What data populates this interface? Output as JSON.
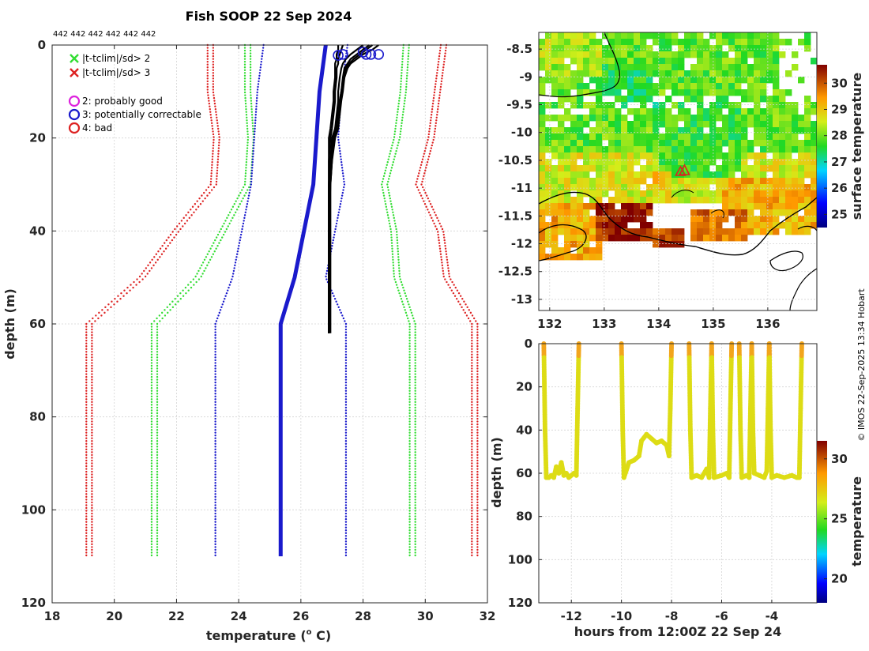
{
  "chart_data": [
    {
      "id": "profile",
      "type": "line",
      "title": "Fish SOOP 22 Sep 2024",
      "top_annotation": "442 442 442 442 442 442",
      "xlabel": "temperature (",
      "xlabel_sup": "o",
      "xlabel_tail": " C)",
      "ylabel": "depth (m)",
      "xlim": [
        18,
        32
      ],
      "ylim": [
        0,
        120
      ],
      "xticks": [
        18,
        20,
        22,
        24,
        26,
        28,
        30,
        32
      ],
      "yticks": [
        0,
        20,
        40,
        60,
        80,
        100,
        120
      ],
      "legend": [
        {
          "symbol": "x",
          "color": "#33dd33",
          "label": "|t-tclim|/sd> 2"
        },
        {
          "symbol": "x",
          "color": "#dd2222",
          "label": "|t-tclim|/sd> 3"
        },
        {
          "symbol": "o",
          "color": "#dd22dd",
          "label": "2: probably good"
        },
        {
          "symbol": "o",
          "color": "#1a1acc",
          "label": "3: potentially correctable"
        },
        {
          "symbol": "o",
          "color": "#dd2222",
          "label": "4: bad"
        }
      ],
      "depth_levels": [
        0,
        10,
        20,
        30,
        40,
        50,
        60,
        110
      ],
      "climatology": {
        "mean": [
          26.8,
          26.6,
          26.5,
          26.4,
          26.1,
          25.8,
          25.35,
          25.35
        ],
        "minus_2sd": [
          24.2,
          24.2,
          24.3,
          24.2,
          23.4,
          22.6,
          21.2,
          21.2
        ],
        "plus_2sd": [
          29.3,
          29.2,
          29.0,
          28.6,
          28.9,
          29.0,
          29.5,
          29.5
        ],
        "minus_3sd": [
          23.0,
          23.0,
          23.2,
          23.1,
          21.9,
          20.8,
          19.1,
          19.1
        ],
        "plus_3sd": [
          30.5,
          30.3,
          30.1,
          29.7,
          30.4,
          30.6,
          31.5,
          31.5
        ],
        "colors": {
          "mean": "#1a1acc",
          "sd2": "#33dd33",
          "sd3": "#dd2222",
          "bounds": "#1a1acc"
        }
      },
      "profiles_depth": [
        0,
        1,
        2,
        3,
        4,
        5,
        7,
        10,
        12,
        15,
        18,
        20,
        25,
        30,
        40,
        50,
        60,
        62
      ],
      "profiles": [
        [
          27.35,
          27.3,
          27.25,
          27.2,
          27.2,
          27.15,
          27.15,
          27.1,
          27.1,
          27.05,
          27.0,
          26.95,
          26.9,
          26.9,
          26.9,
          26.9,
          26.9,
          26.9
        ],
        [
          28.0,
          27.8,
          27.6,
          27.45,
          27.35,
          27.3,
          27.25,
          27.2,
          27.2,
          27.15,
          27.1,
          27.0,
          26.95,
          26.9,
          26.9,
          26.9,
          26.9,
          26.9
        ],
        [
          28.5,
          28.3,
          28.0,
          27.8,
          27.6,
          27.5,
          27.4,
          27.3,
          27.25,
          27.2,
          27.1,
          27.05,
          26.95,
          26.9,
          26.9,
          26.9,
          26.9,
          26.9
        ],
        [
          28.2,
          28.0,
          27.8,
          27.6,
          27.5,
          27.4,
          27.35,
          27.3,
          27.25,
          27.2,
          27.15,
          27.05,
          27.0,
          26.95,
          26.95,
          26.95,
          26.95,
          26.95
        ],
        [
          27.2,
          27.2,
          27.15,
          27.15,
          27.1,
          27.1,
          27.1,
          27.05,
          27.05,
          27.0,
          26.95,
          26.9,
          26.9,
          26.9,
          26.9,
          26.9,
          26.9,
          26.9
        ],
        [
          28.3,
          28.1,
          27.9,
          27.7,
          27.55,
          27.45,
          27.4,
          27.35,
          27.3,
          27.25,
          27.2,
          27.1,
          27.0,
          26.95,
          26.9,
          26.9,
          26.9,
          26.9
        ]
      ],
      "flag_markers": [
        {
          "temperature": 27.35,
          "depth": 1,
          "color": "#1a1acc"
        },
        {
          "temperature": 28.0,
          "depth": 0.5,
          "color": "#1a1acc"
        },
        {
          "temperature": 28.1,
          "depth": 1,
          "color": "#1a1acc"
        },
        {
          "temperature": 28.5,
          "depth": 1,
          "color": "#1a1acc"
        },
        {
          "temperature": 28.25,
          "depth": 1,
          "color": "#1a1acc"
        },
        {
          "temperature": 27.2,
          "depth": 1.2,
          "color": "#1a1acc"
        }
      ]
    },
    {
      "id": "sst-map",
      "type": "heatmap",
      "colorbar_label": "surface temperature",
      "clim": [
        24.5,
        30.7
      ],
      "colorbar_ticks": [
        25,
        26,
        27,
        28,
        29,
        30
      ],
      "xlim": [
        131.8,
        136.9
      ],
      "ylim": [
        -13.2,
        -8.2
      ],
      "xticks": [
        132,
        133,
        134,
        135,
        136
      ],
      "yticks": [
        -8.5,
        -9,
        -9.5,
        -10,
        -10.5,
        -11,
        -11.5,
        -12,
        -12.5,
        -13
      ],
      "vessel_marker": {
        "lon": 134.4,
        "lat": -10.7,
        "color": "#dd2222"
      },
      "regions": [
        {
          "lon": [
            131.8,
            136.9
          ],
          "lat": [
            -10.8,
            -8.2
          ],
          "temperature": 27.9
        },
        {
          "lon": [
            131.8,
            136.9
          ],
          "lat": [
            -11.3,
            -10.4
          ],
          "temperature": 28.6
        },
        {
          "lon": [
            134.0,
            135.5
          ],
          "lat": [
            -10.8,
            -9.4
          ],
          "temperature": 27.7
        },
        {
          "lon": [
            133.0,
            134.0
          ],
          "lat": [
            -9.6,
            -8.8
          ],
          "temperature": 27.5
        },
        {
          "lon": [
            131.8,
            133.0
          ],
          "lat": [
            -9.0,
            -8.2
          ],
          "temperature": 28.3
        },
        {
          "lon": [
            135.2,
            136.9
          ],
          "lat": [
            -11.8,
            -10.8
          ],
          "temperature": 29.2
        },
        {
          "lon": [
            131.8,
            133.0
          ],
          "lat": [
            -12.3,
            -11.3
          ],
          "temperature": 29.3
        },
        {
          "lon": [
            132.9,
            133.9
          ],
          "lat": [
            -11.9,
            -11.3
          ],
          "temperature": 30.4
        },
        {
          "lon": [
            133.9,
            134.5
          ],
          "lat": [
            -12.1,
            -11.7
          ],
          "temperature": 30.2
        },
        {
          "lon": [
            134.6,
            135.6
          ],
          "lat": [
            -12.0,
            -11.4
          ],
          "temperature": 29.8
        },
        {
          "lon": [
            133.4,
            134.2
          ],
          "lat": [
            -11.0,
            -10.7
          ],
          "temperature": 29.0
        }
      ]
    },
    {
      "id": "depth-time",
      "type": "scatter",
      "xlabel": "hours from 12:00Z 22 Sep 24",
      "ylabel": "depth (m)",
      "colorbar_label": "temperature",
      "clim": [
        18,
        31.5
      ],
      "colorbar_ticks": [
        20,
        25,
        30
      ],
      "xlim": [
        -13.3,
        -2.2
      ],
      "ylim": [
        0,
        120
      ],
      "xticks": [
        -12,
        -10,
        -8,
        -6,
        -4
      ],
      "yticks": [
        0,
        20,
        40,
        60,
        80,
        100,
        120
      ],
      "point_temperature": 27.2,
      "dives": [
        {
          "x": [
            -13.1,
            -13.05,
            -13.0,
            -12.9,
            -12.8,
            -12.7,
            -12.6,
            -12.5,
            -12.4,
            -12.3,
            -12.2,
            -12.1,
            -12.0,
            -11.9,
            -11.8,
            -11.75,
            -11.7
          ],
          "y": [
            0,
            40,
            62,
            62,
            61,
            62,
            57,
            60,
            55,
            61,
            60,
            62,
            61,
            60,
            61,
            30,
            0
          ]
        },
        {
          "x": [
            -10.0,
            -9.95,
            -9.9,
            -9.7,
            -9.5,
            -9.3,
            -9.2,
            -9.0,
            -8.8,
            -8.6,
            -8.4,
            -8.2,
            -8.1,
            -8.05,
            -8.0
          ],
          "y": [
            0,
            40,
            62,
            55,
            54,
            52,
            45,
            42,
            44,
            46,
            45,
            47,
            52,
            30,
            0
          ]
        },
        {
          "x": [
            -7.3,
            -7.25,
            -7.2,
            -7.0,
            -6.8,
            -6.6,
            -6.5,
            -6.45,
            -6.4
          ],
          "y": [
            0,
            40,
            62,
            61,
            62,
            58,
            62,
            30,
            0
          ]
        },
        {
          "x": [
            -6.4,
            -6.35,
            -6.3,
            -6.0,
            -5.8,
            -5.7,
            -5.65,
            -5.6
          ],
          "y": [
            0,
            40,
            62,
            61,
            60,
            62,
            30,
            0
          ]
        },
        {
          "x": [
            -5.3,
            -5.25,
            -5.2,
            -5.0,
            -4.9,
            -4.85,
            -4.8
          ],
          "y": [
            0,
            40,
            62,
            61,
            62,
            30,
            0
          ]
        },
        {
          "x": [
            -4.8,
            -4.75,
            -4.7,
            -4.5,
            -4.3,
            -4.2,
            -4.15,
            -4.1
          ],
          "y": [
            0,
            40,
            60,
            61,
            62,
            59,
            30,
            0
          ]
        },
        {
          "x": [
            -4.1,
            -4.05,
            -4.0,
            -3.8,
            -3.5,
            -3.2,
            -3.0,
            -2.9,
            -2.85,
            -2.8
          ],
          "y": [
            0,
            40,
            62,
            61,
            62,
            61,
            62,
            62,
            30,
            0
          ]
        }
      ]
    }
  ],
  "credit": "© IMOS 22-Sep-2025 13:34 Hobart"
}
